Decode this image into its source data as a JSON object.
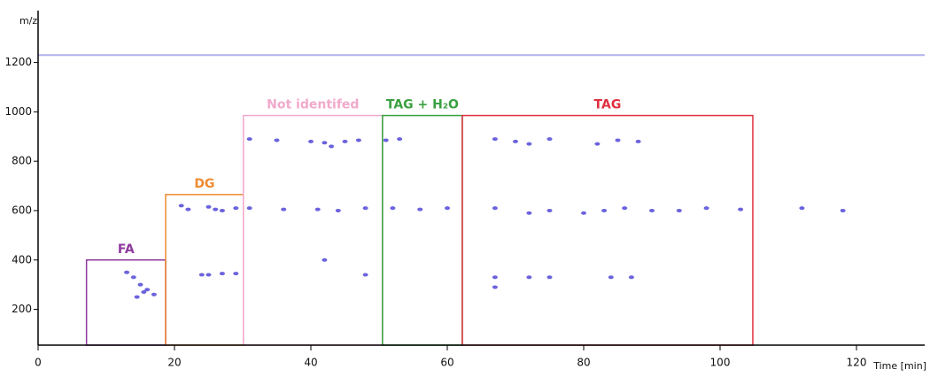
{
  "chart_data": {
    "type": "scatter",
    "x_label": "Time [min]",
    "y_label": "m/z",
    "xlim": [
      0,
      130
    ],
    "ylim": [
      55,
      1410
    ],
    "xticks": [
      0,
      20,
      40,
      60,
      80,
      100,
      120
    ],
    "yticks": [
      200,
      400,
      600,
      800,
      1000,
      1200
    ],
    "reference_line": {
      "y": 1230,
      "color": "#b0b0ee"
    },
    "regions": [
      {
        "label": "FA",
        "x": [
          7.1,
          18.7
        ],
        "y": [
          55,
          400
        ],
        "color": "#8e3a9e"
      },
      {
        "label": "DG",
        "x": [
          18.7,
          30.1
        ],
        "y": [
          55,
          665
        ],
        "color": "#f08a30"
      },
      {
        "label": "Not identifed",
        "x": [
          30.1,
          50.5
        ],
        "y": [
          55,
          985
        ],
        "color": "#f2a9cc"
      },
      {
        "label": "TAG + H₂O",
        "x": [
          50.5,
          62.2
        ],
        "y": [
          55,
          985
        ],
        "color": "#3aa040"
      },
      {
        "label": "TAG",
        "x": [
          62.2,
          104.8
        ],
        "y": [
          55,
          985
        ],
        "color": "#e03040"
      }
    ],
    "series": [
      {
        "color": "#3a2fd0",
        "x": [
          13,
          14,
          15,
          15.5,
          16,
          17,
          14.5,
          21,
          22,
          25,
          26,
          27,
          29,
          24,
          25,
          27,
          29,
          31,
          35,
          40,
          42,
          43,
          45,
          47,
          31,
          36,
          41,
          44,
          48,
          42,
          48,
          51,
          53,
          52,
          56,
          60,
          67,
          70,
          72,
          75,
          82,
          85,
          88,
          67,
          72,
          75,
          80,
          83,
          86,
          90,
          94,
          98,
          67,
          72,
          75,
          67,
          84,
          87,
          103,
          112,
          118
        ],
        "values": [
          350,
          330,
          300,
          270,
          280,
          260,
          250,
          620,
          605,
          615,
          605,
          600,
          610,
          340,
          340,
          345,
          345,
          890,
          885,
          880,
          875,
          860,
          880,
          885,
          610,
          605,
          605,
          600,
          610,
          400,
          340,
          885,
          890,
          610,
          605,
          610,
          890,
          880,
          870,
          890,
          870,
          885,
          880,
          610,
          590,
          600,
          590,
          600,
          610,
          600,
          600,
          610,
          330,
          330,
          330,
          290,
          330,
          330,
          605,
          610,
          600
        ]
      }
    ]
  }
}
